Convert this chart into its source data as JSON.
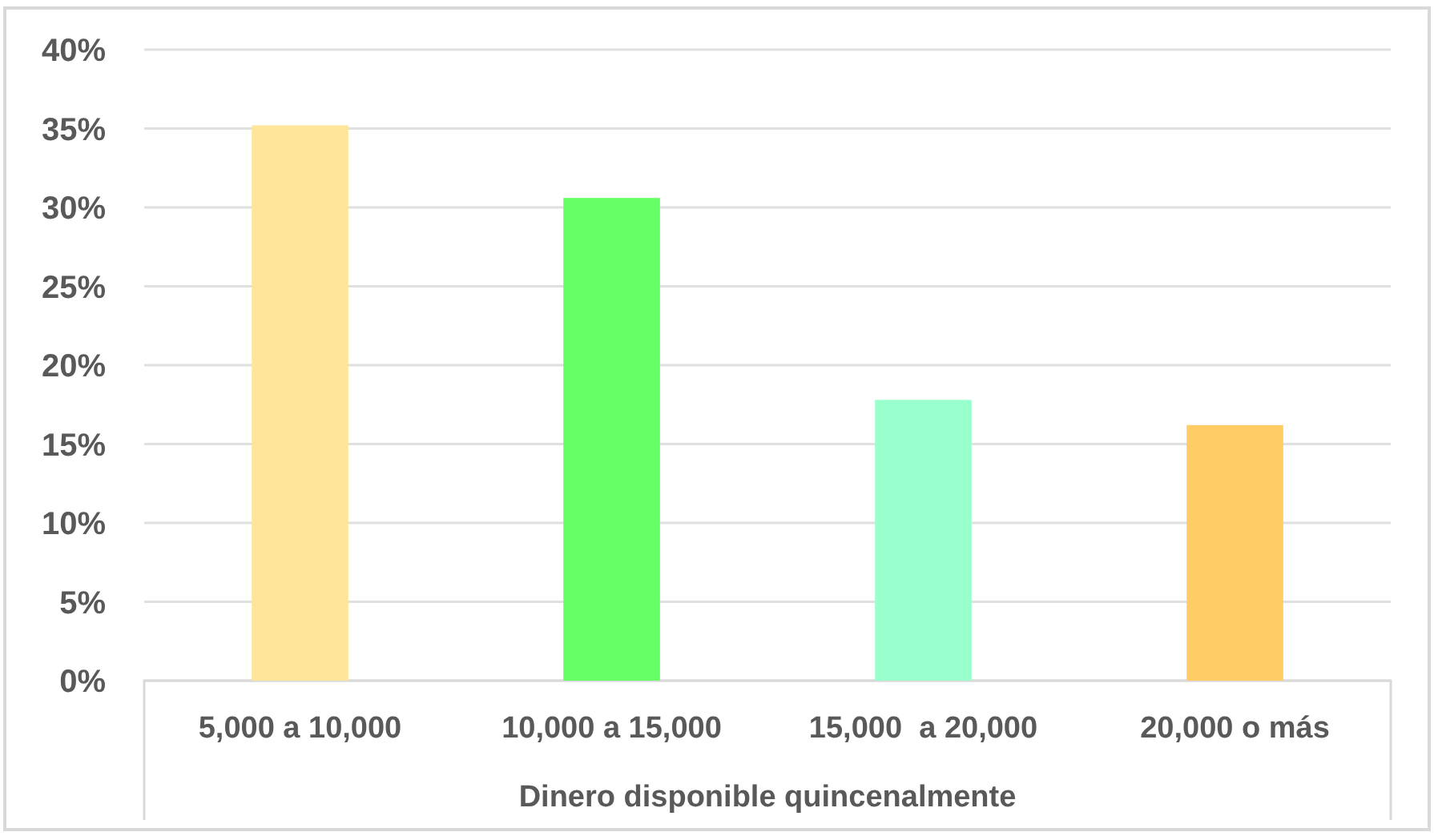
{
  "chart_data": {
    "type": "bar",
    "xlabel": "Dinero disponible quincenalmente",
    "categories": [
      "5,000 a 10,000",
      "10,000 a 15,000",
      "15,000  a 20,000",
      "20,000 o más"
    ],
    "values": [
      35.2,
      30.6,
      17.8,
      16.2
    ],
    "colors": [
      "#fee599",
      "#66ff66",
      "#99ffcc",
      "#ffcc66"
    ],
    "ylim": [
      0,
      40
    ],
    "yticks": [
      {
        "value": 0,
        "label": "0%"
      },
      {
        "value": 5,
        "label": "5%"
      },
      {
        "value": 10,
        "label": "10%"
      },
      {
        "value": 15,
        "label": "15%"
      },
      {
        "value": 20,
        "label": "20%"
      },
      {
        "value": 25,
        "label": "25%"
      },
      {
        "value": 30,
        "label": "30%"
      },
      {
        "value": 35,
        "label": "35%"
      },
      {
        "value": 40,
        "label": "40%"
      }
    ],
    "grid": "y"
  }
}
